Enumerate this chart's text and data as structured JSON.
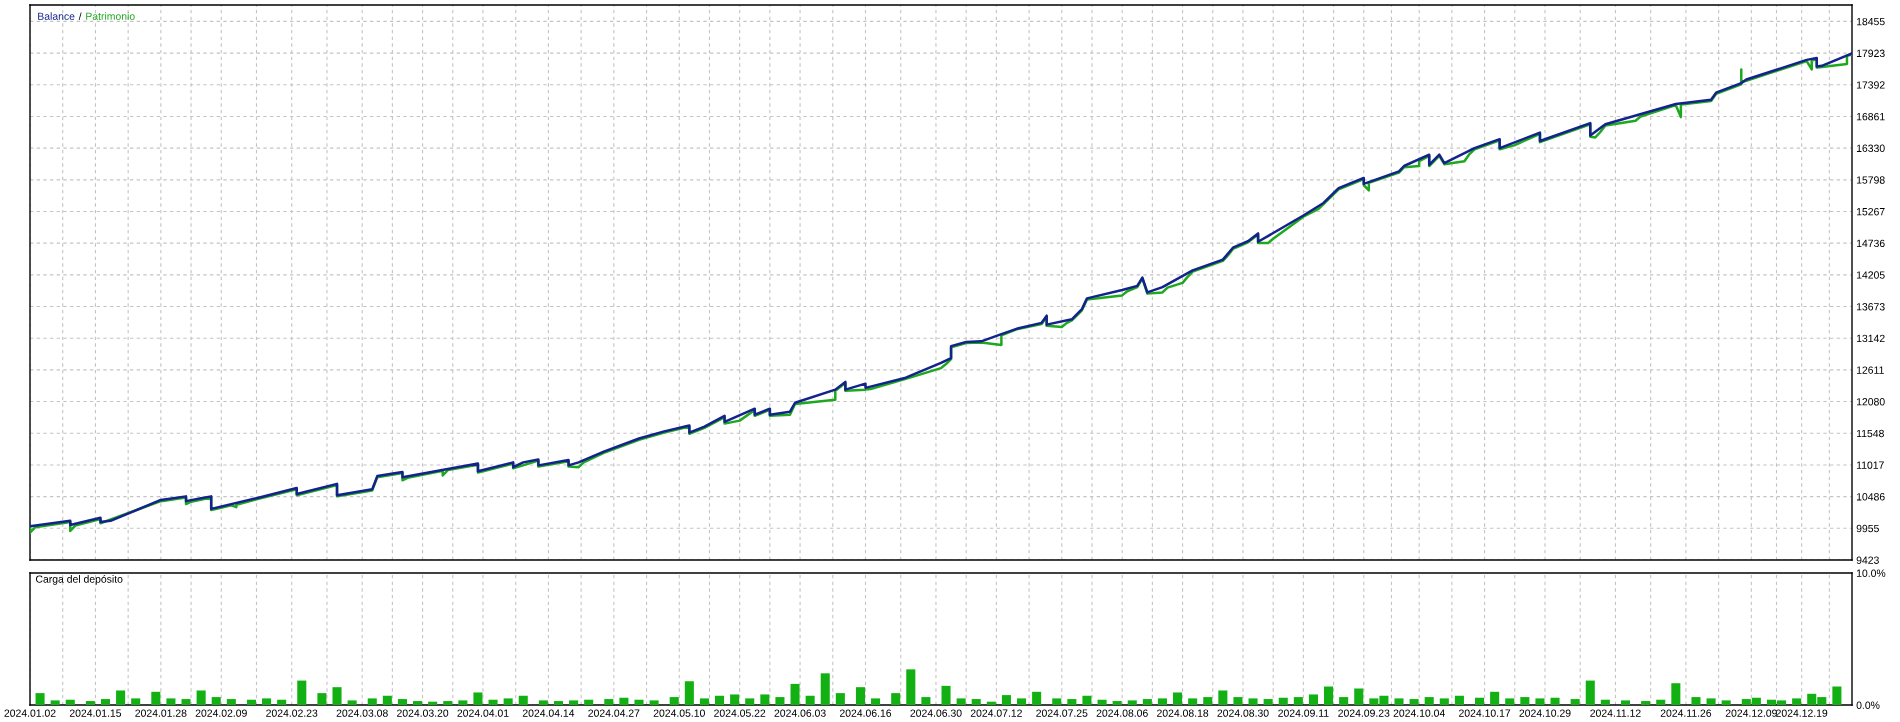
{
  "chart_data": [
    {
      "type": "line",
      "legend": "top left",
      "annotations": [
        "/"
      ],
      "grid": true,
      "tick_labels": "y",
      "xlim": [
        "2024-01-02",
        "2024-12-29"
      ],
      "xticks": [
        {
          "value": "2024-01-02",
          "label": null
        },
        {
          "value": "2024-01-08T12:00",
          "label": null
        },
        {
          "value": "2024-01-15",
          "label": null
        },
        {
          "value": "2024-01-21T12:00",
          "label": null
        },
        {
          "value": "2024-01-28",
          "label": null
        },
        {
          "value": "2024-02-03",
          "label": null
        },
        {
          "value": "2024-02-09",
          "label": null
        },
        {
          "value": "2024-02-16",
          "label": null
        },
        {
          "value": "2024-02-23",
          "label": null
        },
        {
          "value": "2024-03-01",
          "label": null
        },
        {
          "value": "2024-03-08",
          "label": null
        },
        {
          "value": "2024-03-14",
          "label": null
        },
        {
          "value": "2024-03-20",
          "label": null
        },
        {
          "value": "2024-03-26",
          "label": null
        },
        {
          "value": "2024-04-01",
          "label": null
        },
        {
          "value": "2024-04-07T12:00",
          "label": null
        },
        {
          "value": "2024-04-14",
          "label": null
        },
        {
          "value": "2024-04-20T12:00",
          "label": null
        },
        {
          "value": "2024-04-27",
          "label": null
        },
        {
          "value": "2024-05-03T12:00",
          "label": null
        },
        {
          "value": "2024-05-10",
          "label": null
        },
        {
          "value": "2024-05-16",
          "label": null
        },
        {
          "value": "2024-05-22",
          "label": null
        },
        {
          "value": "2024-05-28",
          "label": null
        },
        {
          "value": "2024-06-03",
          "label": null
        },
        {
          "value": "2024-06-09T12:00",
          "label": null
        },
        {
          "value": "2024-06-16",
          "label": null
        },
        {
          "value": "2024-06-23",
          "label": null
        },
        {
          "value": "2024-06-30",
          "label": null
        },
        {
          "value": "2024-07-06",
          "label": null
        },
        {
          "value": "2024-07-12",
          "label": null
        },
        {
          "value": "2024-07-18T12:00",
          "label": null
        },
        {
          "value": "2024-07-25",
          "label": null
        },
        {
          "value": "2024-07-31",
          "label": null
        },
        {
          "value": "2024-08-06",
          "label": null
        },
        {
          "value": "2024-08-12",
          "label": null
        },
        {
          "value": "2024-08-18",
          "label": null
        },
        {
          "value": "2024-08-24",
          "label": null
        },
        {
          "value": "2024-08-30",
          "label": null
        },
        {
          "value": "2024-09-05",
          "label": null
        },
        {
          "value": "2024-09-11",
          "label": null
        },
        {
          "value": "2024-09-17",
          "label": null
        },
        {
          "value": "2024-09-23",
          "label": null
        },
        {
          "value": "2024-09-28T12:00",
          "label": null
        },
        {
          "value": "2024-10-04",
          "label": null
        },
        {
          "value": "2024-10-10T12:00",
          "label": null
        },
        {
          "value": "2024-10-17",
          "label": null
        },
        {
          "value": "2024-10-23",
          "label": null
        },
        {
          "value": "2024-10-29",
          "label": null
        },
        {
          "value": "2024-11-05",
          "label": null
        },
        {
          "value": "2024-11-12",
          "label": null
        },
        {
          "value": "2024-11-19",
          "label": null
        },
        {
          "value": "2024-11-26",
          "label": null
        },
        {
          "value": "2024-12-02T12:00",
          "label": null
        },
        {
          "value": "2024-12-09",
          "label": null
        },
        {
          "value": "2024-12-14",
          "label": null
        },
        {
          "value": "2024-12-19",
          "label": null
        },
        {
          "value": "2024-12-24T12:00",
          "label": null
        }
      ],
      "ylim": [
        9423,
        18730
      ],
      "yticks": [
        9423,
        9955,
        10486,
        11017,
        11548,
        12080,
        12611,
        13142,
        13673,
        14205,
        14736,
        15267,
        15798,
        16330,
        16861,
        17392,
        17923,
        18455
      ],
      "series": [
        {
          "name": "Balance",
          "color": "#14238c",
          "x": [
            "2024-01-02",
            "2024-01-10",
            "2024-01-10",
            "2024-01-16",
            "2024-01-16",
            "2024-01-18",
            "2024-01-28",
            "2024-02-02",
            "2024-02-02",
            "2024-02-05",
            "2024-02-07",
            "2024-02-07",
            "2024-02-16",
            "2024-02-24",
            "2024-02-24",
            "2024-03-03",
            "2024-03-03",
            "2024-03-10",
            "2024-03-11",
            "2024-03-16",
            "2024-03-16",
            "2024-03-31",
            "2024-03-31",
            "2024-04-07",
            "2024-04-07",
            "2024-04-09",
            "2024-04-12",
            "2024-04-12",
            "2024-04-18",
            "2024-04-18",
            "2024-04-20",
            "2024-04-25",
            "2024-05-02",
            "2024-05-07",
            "2024-05-12",
            "2024-05-12",
            "2024-05-15",
            "2024-05-19",
            "2024-05-19",
            "2024-05-25",
            "2024-05-25",
            "2024-05-28",
            "2024-05-28",
            "2024-06-01",
            "2024-06-02",
            "2024-06-10",
            "2024-06-12",
            "2024-06-12",
            "2024-06-16",
            "2024-06-16",
            "2024-06-24",
            "2024-07-01",
            "2024-07-03",
            "2024-07-03",
            "2024-07-06",
            "2024-07-09",
            "2024-07-13",
            "2024-07-16",
            "2024-07-21",
            "2024-07-22",
            "2024-07-22",
            "2024-07-27",
            "2024-07-29",
            "2024-07-30",
            "2024-08-06",
            "2024-08-09",
            "2024-08-10",
            "2024-08-11",
            "2024-08-14",
            "2024-08-20",
            "2024-08-26",
            "2024-08-28",
            "2024-08-31",
            "2024-09-02",
            "2024-09-02",
            "2024-09-11",
            "2024-09-15",
            "2024-09-18",
            "2024-09-23",
            "2024-09-23",
            "2024-09-30",
            "2024-10-01",
            "2024-10-06",
            "2024-10-06",
            "2024-10-08",
            "2024-10-09",
            "2024-10-15",
            "2024-10-20",
            "2024-10-20",
            "2024-10-28",
            "2024-10-28",
            "2024-11-07",
            "2024-11-07",
            "2024-11-10",
            "2024-11-24",
            "2024-12-01",
            "2024-12-02",
            "2024-12-07",
            "2024-12-08",
            "2024-12-20",
            "2024-12-22",
            "2024-12-22",
            "2024-12-23",
            "2024-12-29"
          ],
          "values": [
            9990,
            10080,
            10010,
            10130,
            10060,
            10080,
            10430,
            10490,
            10410,
            10460,
            10490,
            10280,
            10460,
            10630,
            10530,
            10700,
            10510,
            10610,
            10830,
            10900,
            10810,
            11040,
            10910,
            11060,
            10980,
            11060,
            11110,
            11010,
            11100,
            11010,
            11060,
            11240,
            11460,
            11580,
            11680,
            11560,
            11660,
            11840,
            11740,
            11960,
            11860,
            11960,
            11860,
            11910,
            12060,
            12280,
            12410,
            12280,
            12380,
            12310,
            12480,
            12730,
            12810,
            13010,
            13080,
            13090,
            13210,
            13300,
            13400,
            13520,
            13370,
            13460,
            13630,
            13810,
            13950,
            14020,
            14160,
            13910,
            14000,
            14280,
            14460,
            14660,
            14770,
            14900,
            14760,
            15200,
            15410,
            15660,
            15830,
            15730,
            15940,
            16030,
            16220,
            16050,
            16220,
            16080,
            16330,
            16480,
            16330,
            16590,
            16450,
            16750,
            16540,
            16730,
            17070,
            17140,
            17260,
            17420,
            17480,
            17810,
            17840,
            17700,
            17710,
            17920
          ]
        },
        {
          "name": "Patrimonio",
          "color": "#1ea81e",
          "x": [
            "2024-01-02",
            "2024-01-02",
            "2024-01-03",
            "2024-01-10",
            "2024-01-10",
            "2024-01-11",
            "2024-01-16",
            "2024-01-16",
            "2024-01-28",
            "2024-02-02",
            "2024-02-02",
            "2024-02-03",
            "2024-02-07",
            "2024-02-07",
            "2024-02-11",
            "2024-02-12",
            "2024-02-12",
            "2024-02-16",
            "2024-02-24",
            "2024-02-24",
            "2024-03-03",
            "2024-03-03",
            "2024-03-10",
            "2024-03-11",
            "2024-03-16",
            "2024-03-16",
            "2024-03-17",
            "2024-03-24",
            "2024-03-24",
            "2024-03-25",
            "2024-03-31",
            "2024-03-31",
            "2024-04-07",
            "2024-04-07",
            "2024-04-12",
            "2024-04-12",
            "2024-04-18",
            "2024-04-18",
            "2024-04-20",
            "2024-04-21",
            "2024-04-25",
            "2024-05-02",
            "2024-05-07",
            "2024-05-12",
            "2024-05-12",
            "2024-05-15",
            "2024-05-19",
            "2024-05-19",
            "2024-05-22",
            "2024-05-25",
            "2024-05-25",
            "2024-05-28",
            "2024-05-28",
            "2024-06-01",
            "2024-06-02",
            "2024-06-10",
            "2024-06-10",
            "2024-06-12",
            "2024-06-12",
            "2024-06-16",
            "2024-06-17",
            "2024-06-24",
            "2024-07-01",
            "2024-07-02",
            "2024-07-03",
            "2024-07-03",
            "2024-07-06",
            "2024-07-09",
            "2024-07-13",
            "2024-07-13",
            "2024-07-16",
            "2024-07-21",
            "2024-07-22",
            "2024-07-22",
            "2024-07-25",
            "2024-07-26",
            "2024-07-27",
            "2024-07-29",
            "2024-07-30",
            "2024-08-06",
            "2024-08-07",
            "2024-08-09",
            "2024-08-10",
            "2024-08-11",
            "2024-08-14",
            "2024-08-15",
            "2024-08-18",
            "2024-08-19",
            "2024-08-20",
            "2024-08-26",
            "2024-08-27",
            "2024-08-28",
            "2024-08-31",
            "2024-09-02",
            "2024-09-02",
            "2024-09-04",
            "2024-09-05",
            "2024-09-11",
            "2024-09-14",
            "2024-09-15",
            "2024-09-18",
            "2024-09-23",
            "2024-09-23",
            "2024-09-24",
            "2024-09-24",
            "2024-09-30",
            "2024-10-01",
            "2024-10-04",
            "2024-10-04",
            "2024-10-06",
            "2024-10-06",
            "2024-10-08",
            "2024-10-09",
            "2024-10-13",
            "2024-10-14",
            "2024-10-15",
            "2024-10-20",
            "2024-10-20",
            "2024-10-23",
            "2024-10-24",
            "2024-10-28",
            "2024-10-28",
            "2024-11-07",
            "2024-11-07",
            "2024-11-08",
            "2024-11-09",
            "2024-11-10",
            "2024-11-16",
            "2024-11-17",
            "2024-11-24",
            "2024-11-25",
            "2024-11-25",
            "2024-12-01",
            "2024-12-02",
            "2024-12-07",
            "2024-12-07",
            "2024-12-07",
            "2024-12-08",
            "2024-12-20",
            "2024-12-21",
            "2024-12-21",
            "2024-12-22",
            "2024-12-22",
            "2024-12-23",
            "2024-12-28",
            "2024-12-28",
            "2024-12-29"
          ],
          "values": [
            9980,
            9880,
            9970,
            10060,
            9910,
            10000,
            10110,
            10040,
            10410,
            10470,
            10360,
            10400,
            10470,
            10260,
            10340,
            10310,
            10350,
            10440,
            10610,
            10510,
            10680,
            10490,
            10590,
            10810,
            10880,
            10760,
            10800,
            10920,
            10840,
            10930,
            11020,
            10890,
            11040,
            10960,
            11090,
            10990,
            11080,
            10990,
            10980,
            11060,
            11220,
            11440,
            11560,
            11660,
            11540,
            11640,
            11820,
            11710,
            11760,
            11940,
            11840,
            11940,
            11840,
            11860,
            12040,
            12110,
            12260,
            12390,
            12260,
            12280,
            12290,
            12460,
            12640,
            12710,
            12790,
            12990,
            13060,
            13070,
            13030,
            13190,
            13290,
            13380,
            13500,
            13350,
            13330,
            13400,
            13440,
            13610,
            13790,
            13860,
            13930,
            14000,
            14140,
            13890,
            13910,
            13990,
            14070,
            14170,
            14260,
            14440,
            14530,
            14640,
            14750,
            14880,
            14740,
            14740,
            14810,
            15180,
            15310,
            15390,
            15640,
            15810,
            15710,
            15620,
            15750,
            15920,
            16010,
            16030,
            16110,
            16200,
            16030,
            16200,
            16060,
            16110,
            16230,
            16310,
            16460,
            16310,
            16380,
            16420,
            16570,
            16430,
            16730,
            16520,
            16510,
            16600,
            16710,
            16790,
            16860,
            17050,
            16850,
            17060,
            17120,
            17240,
            17400,
            17650,
            17440,
            17460,
            17790,
            17650,
            17800,
            17820,
            17680,
            17690,
            17740,
            17880,
            17900
          ]
        }
      ]
    },
    {
      "type": "bar",
      "title": "Carga del depósito",
      "grid": "x",
      "color": "#12b012",
      "xlim": [
        "2024-01-02",
        "2024-12-29"
      ],
      "xticks": [
        {
          "value": "2024-01-02",
          "label": "2024.01.02"
        },
        {
          "value": "2024-01-08T12:00",
          "label": null
        },
        {
          "value": "2024-01-15",
          "label": "2024.01.15"
        },
        {
          "value": "2024-01-21T12:00",
          "label": null
        },
        {
          "value": "2024-01-28",
          "label": "2024.01.28"
        },
        {
          "value": "2024-02-03",
          "label": null
        },
        {
          "value": "2024-02-09",
          "label": "2024.02.09"
        },
        {
          "value": "2024-02-16",
          "label": null
        },
        {
          "value": "2024-02-23",
          "label": "2024.02.23"
        },
        {
          "value": "2024-03-01",
          "label": null
        },
        {
          "value": "2024-03-08",
          "label": "2024.03.08"
        },
        {
          "value": "2024-03-14",
          "label": null
        },
        {
          "value": "2024-03-20",
          "label": "2024.03.20"
        },
        {
          "value": "2024-03-26",
          "label": null
        },
        {
          "value": "2024-04-01",
          "label": "2024.04.01"
        },
        {
          "value": "2024-04-07T12:00",
          "label": null
        },
        {
          "value": "2024-04-14",
          "label": "2024.04.14"
        },
        {
          "value": "2024-04-20T12:00",
          "label": null
        },
        {
          "value": "2024-04-27",
          "label": "2024.04.27"
        },
        {
          "value": "2024-05-03T12:00",
          "label": null
        },
        {
          "value": "2024-05-10",
          "label": "2024.05.10"
        },
        {
          "value": "2024-05-16",
          "label": null
        },
        {
          "value": "2024-05-22",
          "label": "2024.05.22"
        },
        {
          "value": "2024-05-28",
          "label": null
        },
        {
          "value": "2024-06-03",
          "label": "2024.06.03"
        },
        {
          "value": "2024-06-09T12:00",
          "label": null
        },
        {
          "value": "2024-06-16",
          "label": "2024.06.16"
        },
        {
          "value": "2024-06-23",
          "label": null
        },
        {
          "value": "2024-06-30",
          "label": "2024.06.30"
        },
        {
          "value": "2024-07-06",
          "label": null
        },
        {
          "value": "2024-07-12",
          "label": "2024.07.12"
        },
        {
          "value": "2024-07-18T12:00",
          "label": null
        },
        {
          "value": "2024-07-25",
          "label": "2024.07.25"
        },
        {
          "value": "2024-07-31",
          "label": null
        },
        {
          "value": "2024-08-06",
          "label": "2024.08.06"
        },
        {
          "value": "2024-08-12",
          "label": null
        },
        {
          "value": "2024-08-18",
          "label": "2024.08.18"
        },
        {
          "value": "2024-08-24",
          "label": null
        },
        {
          "value": "2024-08-30",
          "label": "2024.08.30"
        },
        {
          "value": "2024-09-05",
          "label": null
        },
        {
          "value": "2024-09-11",
          "label": "2024.09.11"
        },
        {
          "value": "2024-09-17",
          "label": null
        },
        {
          "value": "2024-09-23",
          "label": "2024.09.23"
        },
        {
          "value": "2024-09-28T12:00",
          "label": null
        },
        {
          "value": "2024-10-04",
          "label": "2024.10.04"
        },
        {
          "value": "2024-10-10T12:00",
          "label": null
        },
        {
          "value": "2024-10-17",
          "label": "2024.10.17"
        },
        {
          "value": "2024-10-23",
          "label": null
        },
        {
          "value": "2024-10-29",
          "label": "2024.10.29"
        },
        {
          "value": "2024-11-05",
          "label": null
        },
        {
          "value": "2024-11-12",
          "label": "2024.11.12"
        },
        {
          "value": "2024-11-19",
          "label": null
        },
        {
          "value": "2024-11-26",
          "label": "2024.11.26"
        },
        {
          "value": "2024-12-02T12:00",
          "label": null
        },
        {
          "value": "2024-12-09",
          "label": "2024.12.09"
        },
        {
          "value": "2024-12-14",
          "label": null
        },
        {
          "value": "2024-12-19",
          "label": "2024.12.19"
        },
        {
          "value": "2024-12-24T12:00",
          "label": null
        }
      ],
      "ylim": [
        0,
        10
      ],
      "yticks": [
        {
          "value": 0,
          "label": "0.0%"
        },
        {
          "value": 10,
          "label": "10.0%"
        }
      ],
      "x": [
        "2024-01-04",
        "2024-01-07",
        "2024-01-10",
        "2024-01-14",
        "2024-01-17",
        "2024-01-20",
        "2024-01-23",
        "2024-01-27",
        "2024-01-30",
        "2024-02-02",
        "2024-02-05",
        "2024-02-08",
        "2024-02-11",
        "2024-02-15",
        "2024-02-18",
        "2024-02-21",
        "2024-02-25",
        "2024-02-29",
        "2024-03-03",
        "2024-03-06",
        "2024-03-10",
        "2024-03-13",
        "2024-03-16",
        "2024-03-19",
        "2024-03-22",
        "2024-03-25",
        "2024-03-28",
        "2024-03-31",
        "2024-04-03",
        "2024-04-06",
        "2024-04-09",
        "2024-04-13",
        "2024-04-16",
        "2024-04-19",
        "2024-04-22",
        "2024-04-26",
        "2024-04-29",
        "2024-05-02",
        "2024-05-05",
        "2024-05-09",
        "2024-05-12",
        "2024-05-15",
        "2024-05-18",
        "2024-05-21",
        "2024-05-24",
        "2024-05-27",
        "2024-05-30",
        "2024-06-02",
        "2024-06-05",
        "2024-06-08",
        "2024-06-11",
        "2024-06-15",
        "2024-06-18",
        "2024-06-22",
        "2024-06-25",
        "2024-06-28",
        "2024-07-02",
        "2024-07-05",
        "2024-07-08",
        "2024-07-11",
        "2024-07-14",
        "2024-07-17",
        "2024-07-20",
        "2024-07-24",
        "2024-07-27",
        "2024-07-30",
        "2024-08-02",
        "2024-08-05",
        "2024-08-08",
        "2024-08-11",
        "2024-08-14",
        "2024-08-17",
        "2024-08-20",
        "2024-08-23",
        "2024-08-26",
        "2024-08-29",
        "2024-09-01",
        "2024-09-04",
        "2024-09-07",
        "2024-09-10",
        "2024-09-13",
        "2024-09-16",
        "2024-09-19",
        "2024-09-22",
        "2024-09-25",
        "2024-09-27",
        "2024-09-30",
        "2024-10-03",
        "2024-10-06",
        "2024-10-09",
        "2024-10-12",
        "2024-10-16",
        "2024-10-19",
        "2024-10-22",
        "2024-10-25",
        "2024-10-28",
        "2024-10-31",
        "2024-11-04",
        "2024-11-07",
        "2024-11-10",
        "2024-11-14",
        "2024-11-18",
        "2024-11-21",
        "2024-11-24",
        "2024-11-28",
        "2024-12-01",
        "2024-12-04",
        "2024-12-08",
        "2024-12-10",
        "2024-12-13",
        "2024-12-15",
        "2024-12-18",
        "2024-12-21",
        "2024-12-23",
        "2024-12-26"
      ],
      "values": [
        0.9,
        0.35,
        0.4,
        0.3,
        0.45,
        1.1,
        0.5,
        1.0,
        0.5,
        0.45,
        1.1,
        0.6,
        0.45,
        0.4,
        0.5,
        0.4,
        1.85,
        0.9,
        1.35,
        0.35,
        0.5,
        0.7,
        0.45,
        0.3,
        0.25,
        0.3,
        0.35,
        0.95,
        0.4,
        0.5,
        0.7,
        0.35,
        0.3,
        0.35,
        0.4,
        0.45,
        0.55,
        0.4,
        0.35,
        0.6,
        1.8,
        0.5,
        0.7,
        0.8,
        0.5,
        0.8,
        0.6,
        1.6,
        0.7,
        2.4,
        0.9,
        1.35,
        0.5,
        0.9,
        2.7,
        0.6,
        1.45,
        0.5,
        0.45,
        0.25,
        0.75,
        0.5,
        1.0,
        0.5,
        0.45,
        0.7,
        0.4,
        0.3,
        0.35,
        0.45,
        0.5,
        0.95,
        0.5,
        0.6,
        1.1,
        0.6,
        0.5,
        0.45,
        0.55,
        0.6,
        0.8,
        1.4,
        0.6,
        1.25,
        0.5,
        0.7,
        0.5,
        0.45,
        0.6,
        0.5,
        0.7,
        0.55,
        1.0,
        0.5,
        0.6,
        0.5,
        0.55,
        0.45,
        1.85,
        0.4,
        0.35,
        0.3,
        0.4,
        1.65,
        0.6,
        0.5,
        0.35,
        0.45,
        0.55,
        0.4,
        0.35,
        0.5,
        0.85,
        0.6,
        1.4
      ]
    }
  ]
}
